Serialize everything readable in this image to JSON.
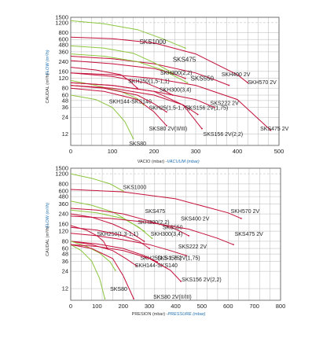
{
  "colors": {
    "green": "#8cc63f",
    "red": "#c4103a",
    "grid": "#b7b7b7",
    "axis_blue": "#1f6fb2"
  },
  "chart_data": [
    {
      "type": "line",
      "xlabel": "VACIO (mbar)",
      "xlabel_en": "VACUUM (mbar)",
      "ylabel": "CAUDAL (m³/h)",
      "ylabel_en": "FLOW (m³/h)",
      "ylim": [
        0,
        1500
      ],
      "xlim": [
        0,
        500
      ],
      "yscale": "log",
      "grid": true,
      "y_ticks": [
        1500,
        1200,
        800,
        600,
        480,
        360,
        240,
        160,
        120,
        80,
        60,
        48,
        36,
        24,
        12
      ],
      "x_ticks": [
        0,
        100,
        200,
        300,
        400,
        500
      ],
      "series": [
        {
          "name": "SKS1000",
          "color": "green",
          "x": [
            0,
            80,
            160,
            220,
            275
          ],
          "y": [
            1300,
            1150,
            900,
            620,
            420
          ],
          "label_at": [
            165,
            500
          ]
        },
        {
          "name": "SKH570 2V",
          "color": "red",
          "x": [
            0,
            100,
            200,
            300,
            400,
            425
          ],
          "y": [
            660,
            620,
            520,
            330,
            140,
            100
          ],
          "label_at": [
            425,
            95
          ]
        },
        {
          "name": "SKH400 2V",
          "color": "red",
          "x": [
            0,
            100,
            200,
            300,
            350,
            380
          ],
          "y": [
            300,
            270,
            220,
            150,
            110,
            90
          ],
          "label_at": [
            362,
            130
          ]
        },
        {
          "name": "SKS475",
          "color": "green",
          "x": [
            0,
            80,
            150,
            200,
            245
          ],
          "y": [
            460,
            420,
            340,
            230,
            150
          ],
          "label_at": [
            245,
            240
          ]
        },
        {
          "name": "SKS550",
          "color": "green",
          "x": [
            0,
            80,
            160,
            220,
            260,
            280
          ],
          "y": [
            330,
            300,
            240,
            170,
            120,
            100
          ],
          "label_at": [
            288,
            110
          ]
        },
        {
          "name": "SKH300(2,2)",
          "color": "red",
          "x": [
            0,
            100,
            200,
            240,
            275
          ],
          "y": [
            250,
            220,
            180,
            150,
            120
          ],
          "label_at": [
            215,
            140
          ]
        },
        {
          "name": "SKH250(1,5-1,1)",
          "color": "red",
          "x": [
            0,
            60,
            120,
            140,
            160
          ],
          "y": [
            190,
            170,
            140,
            110,
            80
          ],
          "label_at": [
            138,
            100
          ]
        },
        {
          "name": "SKH300(3,4)",
          "color": "red",
          "x": [
            0,
            100,
            180,
            220,
            245
          ],
          "y": [
            150,
            130,
            100,
            75,
            60
          ],
          "label_at": [
            213,
            70
          ]
        },
        {
          "name": "SKH144-SKS140",
          "color": "green",
          "x": [
            0,
            60,
            120,
            160,
            175
          ],
          "y": [
            110,
            90,
            70,
            52,
            40
          ],
          "label_at": [
            92,
            43
          ]
        },
        {
          "name": "SKH25(1,5-1,75)",
          "color": "red",
          "x": [
            0,
            80,
            160,
            200,
            230
          ],
          "y": [
            90,
            80,
            60,
            42,
            30
          ],
          "label_at": [
            188,
            33
          ]
        },
        {
          "name": "SKS156 2V(1,75)",
          "color": "red",
          "x": [
            0,
            100,
            200,
            270,
            305
          ],
          "y": [
            90,
            80,
            60,
            40,
            27
          ],
          "label_at": [
            275,
            33
          ]
        },
        {
          "name": "SKS222 2V",
          "color": "red",
          "x": [
            0,
            100,
            200,
            300,
            345
          ],
          "y": [
            100,
            90,
            70,
            50,
            36
          ],
          "label_at": [
            335,
            40
          ]
        },
        {
          "name": "SKS80 2V(II/III)",
          "color": "red",
          "x": [
            0,
            80,
            160,
            200,
            230
          ],
          "y": [
            80,
            70,
            50,
            30,
            17
          ],
          "label_at": [
            188,
            14
          ]
        },
        {
          "name": "SKS156 2V(2,2)",
          "color": "red",
          "x": [
            0,
            100,
            200,
            270,
            315
          ],
          "y": [
            100,
            90,
            70,
            40,
            15
          ],
          "label_at": [
            318,
            11
          ]
        },
        {
          "name": "SKS475 2V",
          "color": "red",
          "x": [
            0,
            100,
            200,
            300,
            400,
            480
          ],
          "y": [
            150,
            140,
            120,
            90,
            50,
            14
          ],
          "label_at": [
            455,
            14
          ]
        },
        {
          "name": "SKS80",
          "color": "green",
          "x": [
            0,
            60,
            100,
            130,
            150
          ],
          "y": [
            60,
            50,
            36,
            20,
            10
          ],
          "label_at": [
            140,
            7
          ]
        }
      ]
    },
    {
      "type": "line",
      "xlabel": "PRESION (mbar)",
      "xlabel_en": "PRESSURE (mbar)",
      "ylabel": "CAUDAL (m³/h)",
      "ylabel_en": "FLOW (m³/h)",
      "ylim": [
        0,
        1500
      ],
      "xlim": [
        0,
        800
      ],
      "yscale": "log",
      "grid": true,
      "y_ticks": [
        1500,
        1200,
        800,
        600,
        480,
        360,
        240,
        160,
        120,
        80,
        60,
        48,
        36,
        24,
        12
      ],
      "x_ticks": [
        0,
        100,
        200,
        300,
        400,
        500,
        600,
        700,
        800
      ],
      "series": [
        {
          "name": "SKS1000",
          "color": "green",
          "x": [
            0,
            80,
            150,
            200
          ],
          "y": [
            1200,
            1000,
            800,
            600
          ],
          "label_at": [
            200,
            650
          ]
        },
        {
          "name": "SKH570 2V",
          "color": "red",
          "x": [
            0,
            200,
            400,
            600,
            650
          ],
          "y": [
            640,
            580,
            440,
            250,
            200
          ],
          "label_at": [
            610,
            250
          ]
        },
        {
          "name": "SKS475",
          "color": "green",
          "x": [
            0,
            80,
            160,
            220,
            280
          ],
          "y": [
            400,
            340,
            260,
            180,
            120
          ],
          "label_at": [
            283,
            250
          ]
        },
        {
          "name": "SKS400 2V",
          "color": "red",
          "x": [
            0,
            100,
            200,
            300,
            400,
            450
          ],
          "y": [
            300,
            280,
            240,
            180,
            130,
            100
          ],
          "label_at": [
            420,
            185
          ]
        },
        {
          "name": "SKH300(2,2)",
          "color": "red",
          "x": [
            0,
            80,
            160,
            220,
            280
          ],
          "y": [
            240,
            210,
            160,
            120,
            80
          ],
          "label_at": [
            255,
            160
          ]
        },
        {
          "name": "SKS550",
          "color": "green",
          "x": [
            0,
            100,
            200,
            260,
            310
          ],
          "y": [
            280,
            250,
            200,
            140,
            90
          ],
          "label_at": [
            350,
            130
          ]
        },
        {
          "name": "SKS475 2V",
          "color": "red",
          "x": [
            0,
            150,
            300,
            450,
            560,
            620
          ],
          "y": [
            220,
            200,
            170,
            130,
            90,
            70
          ],
          "label_at": [
            625,
            100
          ]
        },
        {
          "name": "SKH250(1,3-1,1)",
          "color": "red",
          "x": [
            0,
            60,
            100,
            125,
            140
          ],
          "y": [
            150,
            125,
            100,
            80,
            60
          ],
          "label_at": [
            100,
            100
          ]
        },
        {
          "name": "SKH300(3,4)",
          "color": "red",
          "x": [
            0,
            100,
            200,
            260,
            300
          ],
          "y": [
            140,
            125,
            100,
            80,
            60
          ],
          "label_at": [
            305,
            100
          ]
        },
        {
          "name": "SKS222 2V",
          "color": "red",
          "x": [
            0,
            100,
            200,
            300,
            380,
            440
          ],
          "y": [
            110,
            100,
            85,
            70,
            55,
            45
          ],
          "label_at": [
            410,
            60
          ]
        },
        {
          "name": "SKH25(1,5-1,75)",
          "color": "red",
          "x": [
            0,
            80,
            160,
            210,
            250
          ],
          "y": [
            80,
            70,
            55,
            40,
            30
          ],
          "label_at": [
            265,
            38
          ]
        },
        {
          "name": "SKS156 2V(1,75)",
          "color": "red",
          "x": [
            0,
            100,
            200,
            280,
            330
          ],
          "y": [
            80,
            72,
            60,
            45,
            35
          ],
          "label_at": [
            330,
            38
          ]
        },
        {
          "name": "SKH144-SKS140",
          "color": "green",
          "x": [
            0,
            60,
            110,
            150,
            170
          ],
          "y": [
            80,
            65,
            50,
            35,
            25
          ],
          "label_at": [
            245,
            28
          ]
        },
        {
          "name": "SKS156 2V(2,2)",
          "color": "red",
          "x": [
            0,
            100,
            200,
            300,
            380,
            420
          ],
          "y": [
            70,
            65,
            55,
            40,
            25,
            16
          ],
          "label_at": [
            423,
            16
          ]
        },
        {
          "name": "SKS80",
          "color": "green",
          "x": [
            0,
            40,
            80,
            110,
            130
          ],
          "y": [
            70,
            55,
            36,
            18,
            8
          ],
          "label_at": [
            150,
            11
          ]
        },
        {
          "name": "SKS80 2V(II/III)",
          "color": "red",
          "x": [
            0,
            80,
            160,
            200,
            240
          ],
          "y": [
            70,
            60,
            40,
            20,
            8
          ],
          "label_at": [
            315,
            8
          ]
        }
      ]
    }
  ]
}
